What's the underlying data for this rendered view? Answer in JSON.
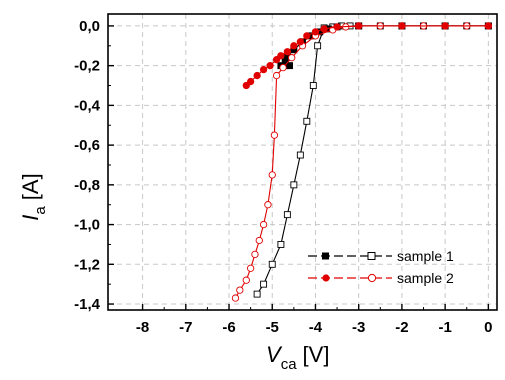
{
  "chart_data": {
    "type": "scatter",
    "title": "",
    "xlabel": {
      "main": "V",
      "sub": "ca",
      "unit": "[V]"
    },
    "ylabel": {
      "main": "I",
      "sub": "a",
      "unit": "[A]"
    },
    "xlim": [
      -8.8,
      0.2
    ],
    "ylim": [
      -1.43,
      0.06
    ],
    "xticks": [
      -8,
      -7,
      -6,
      -5,
      -4,
      -3,
      -2,
      -1,
      0
    ],
    "xtick_labels": [
      "-8",
      "-7",
      "-6",
      "-5",
      "-4",
      "-3",
      "-2",
      "-1",
      "0"
    ],
    "yticks": [
      0.0,
      -0.2,
      -0.4,
      -0.6,
      -0.8,
      -1.0,
      -1.2,
      -1.4
    ],
    "ytick_labels": [
      "0,0",
      "-0,2",
      "-0,4",
      "-0,6",
      "-0,8",
      "-1,0",
      "-1,2",
      "-1,4"
    ],
    "grid": true,
    "legend_position": "bottom-right",
    "series": [
      {
        "name": "sample 1",
        "color": "#000000",
        "forward": [
          [
            -4.8,
            -0.2
          ],
          [
            -4.7,
            -0.2
          ],
          [
            -4.6,
            -0.2
          ],
          [
            -4.7,
            -0.18
          ],
          [
            -4.65,
            -0.15
          ],
          [
            -4.5,
            -0.12
          ],
          [
            -4.3,
            -0.08
          ],
          [
            -4.1,
            -0.05
          ],
          [
            -3.9,
            -0.03
          ],
          [
            -3.7,
            -0.015
          ],
          [
            -3.5,
            -0.005
          ],
          [
            -3.0,
            0.0
          ],
          [
            -2.0,
            0.0
          ],
          [
            -1.0,
            0.0
          ],
          [
            0.0,
            0.0
          ]
        ],
        "reverse": [
          [
            0.0,
            0.0
          ],
          [
            -0.5,
            0.0
          ],
          [
            -1.0,
            0.0
          ],
          [
            -1.5,
            0.0
          ],
          [
            -2.0,
            0.0
          ],
          [
            -2.5,
            0.0
          ],
          [
            -3.0,
            0.0
          ],
          [
            -3.2,
            0.0
          ],
          [
            -3.4,
            0.0
          ],
          [
            -3.6,
            -0.005
          ],
          [
            -3.8,
            -0.01
          ],
          [
            -3.95,
            -0.1
          ],
          [
            -4.05,
            -0.3
          ],
          [
            -4.2,
            -0.48
          ],
          [
            -4.35,
            -0.65
          ],
          [
            -4.5,
            -0.8
          ],
          [
            -4.65,
            -0.95
          ],
          [
            -4.8,
            -1.1
          ],
          [
            -5.0,
            -1.2
          ],
          [
            -5.2,
            -1.3
          ],
          [
            -5.35,
            -1.35
          ]
        ]
      },
      {
        "name": "sample 2",
        "color": "#e00000",
        "forward": [
          [
            -5.6,
            -0.3
          ],
          [
            -5.5,
            -0.28
          ],
          [
            -5.35,
            -0.25
          ],
          [
            -5.2,
            -0.22
          ],
          [
            -5.05,
            -0.2
          ],
          [
            -4.9,
            -0.17
          ],
          [
            -4.8,
            -0.15
          ],
          [
            -4.65,
            -0.13
          ],
          [
            -4.5,
            -0.1
          ],
          [
            -4.35,
            -0.08
          ],
          [
            -4.2,
            -0.05
          ],
          [
            -4.0,
            -0.03
          ],
          [
            -3.8,
            -0.015
          ],
          [
            -3.5,
            -0.005
          ],
          [
            -3.0,
            0.0
          ],
          [
            -2.0,
            0.0
          ],
          [
            -1.0,
            0.0
          ],
          [
            0.0,
            0.0
          ]
        ],
        "reverse": [
          [
            0.0,
            0.0
          ],
          [
            -0.5,
            0.0
          ],
          [
            -1.0,
            0.0
          ],
          [
            -1.5,
            0.0
          ],
          [
            -2.0,
            0.0
          ],
          [
            -2.5,
            0.0
          ],
          [
            -3.0,
            0.0
          ],
          [
            -3.3,
            -0.005
          ],
          [
            -3.6,
            -0.02
          ],
          [
            -4.0,
            -0.05
          ],
          [
            -4.3,
            -0.1
          ],
          [
            -4.55,
            -0.16
          ],
          [
            -4.75,
            -0.21
          ],
          [
            -4.9,
            -0.25
          ],
          [
            -4.95,
            -0.55
          ],
          [
            -5.0,
            -0.75
          ],
          [
            -5.1,
            -0.9
          ],
          [
            -5.2,
            -1.0
          ],
          [
            -5.3,
            -1.08
          ],
          [
            -5.4,
            -1.15
          ],
          [
            -5.5,
            -1.22
          ],
          [
            -5.6,
            -1.28
          ],
          [
            -5.75,
            -1.33
          ],
          [
            -5.85,
            -1.37
          ]
        ]
      }
    ]
  }
}
